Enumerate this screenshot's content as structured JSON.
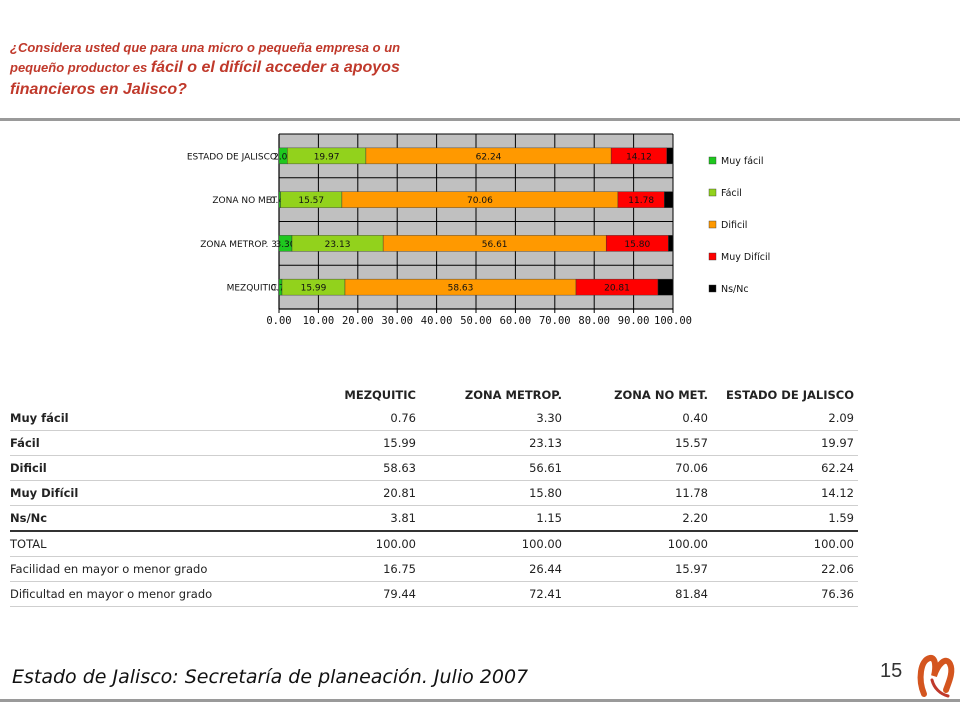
{
  "title": {
    "line1": "¿Considera usted que para una micro o pequeña empresa o un",
    "line2_small": "pequeño productor es ",
    "line2_big": "fácil o el difícil acceder a apoyos",
    "line3": "financieros en Jalisco?"
  },
  "colors": {
    "Muy fácil": "#1ec81e",
    "Fácil": "#92d21c",
    "Dificil": "#ff9900",
    "Muy Difícil": "#ff0000",
    "Ns/Nc": "#000000",
    "plot_bg": "#c0c0c0",
    "title": "#c0392b"
  },
  "chart_data": {
    "type": "bar",
    "orientation": "horizontal",
    "stacked": true,
    "categories": [
      "ESTADO DE JALISCO",
      "ZONA NO MET.",
      "ZONA METROP.",
      "MEZQUITIC"
    ],
    "series": [
      {
        "name": "Muy fácil",
        "values": [
          2.09,
          0.4,
          3.3,
          0.76
        ],
        "labels": [
          "2.09",
          "0.40",
          "3.30",
          "0.76"
        ]
      },
      {
        "name": "Fácil",
        "values": [
          19.97,
          15.57,
          23.13,
          15.99
        ],
        "labels": [
          "19.97",
          "15.57",
          "23.13",
          "15.99"
        ]
      },
      {
        "name": "Dificil",
        "values": [
          62.24,
          70.06,
          56.61,
          58.63
        ],
        "labels": [
          "62.24",
          "70.06",
          "56.61",
          "58.63"
        ]
      },
      {
        "name": "Muy Difícil",
        "values": [
          14.12,
          11.78,
          15.8,
          20.81
        ],
        "labels": [
          "14.12",
          "11.78",
          "15.80",
          "20.81"
        ]
      },
      {
        "name": "Ns/Nc",
        "values": [
          1.59,
          2.2,
          1.15,
          3.81
        ],
        "labels": [
          "",
          "",
          "",
          ""
        ]
      }
    ],
    "category_labels": [
      "ESTADO DE JALISCO",
      "ZONA NO MET",
      "ZONA METROP. 3",
      "MEZQUITIC"
    ],
    "xlim": [
      0,
      100
    ],
    "xticks": [
      "0.00",
      "10.00",
      "20.00",
      "30.00",
      "40.00",
      "50.00",
      "60.00",
      "70.00",
      "80.00",
      "90.00",
      "100.00"
    ],
    "grid": true,
    "legend_position": "right"
  },
  "table": {
    "headers": [
      "",
      "MEZQUITIC",
      "ZONA METROP.",
      "ZONA NO MET.",
      "ESTADO DE JALISCO"
    ],
    "rows": [
      [
        "Muy fácil",
        "0.76",
        "3.30",
        "0.40",
        "2.09"
      ],
      [
        "Fácil",
        "15.99",
        "23.13",
        "15.57",
        "19.97"
      ],
      [
        "Dificil",
        "58.63",
        "56.61",
        "70.06",
        "62.24"
      ],
      [
        "Muy Difícil",
        "20.81",
        "15.80",
        "11.78",
        "14.12"
      ],
      [
        "Ns/Nc",
        "3.81",
        "1.15",
        "2.20",
        "1.59"
      ],
      [
        "TOTAL",
        "100.00",
        "100.00",
        "100.00",
        "100.00"
      ],
      [
        "Facilidad en mayor o menor grado",
        "16.75",
        "26.44",
        "15.97",
        "22.06"
      ],
      [
        "Dificultad en mayor o menor grado",
        "79.44",
        "72.41",
        "81.84",
        "76.36"
      ]
    ]
  },
  "footer": {
    "source": "Estado de Jalisco: Secretaría de planeación. Julio 2007",
    "page": "15"
  }
}
